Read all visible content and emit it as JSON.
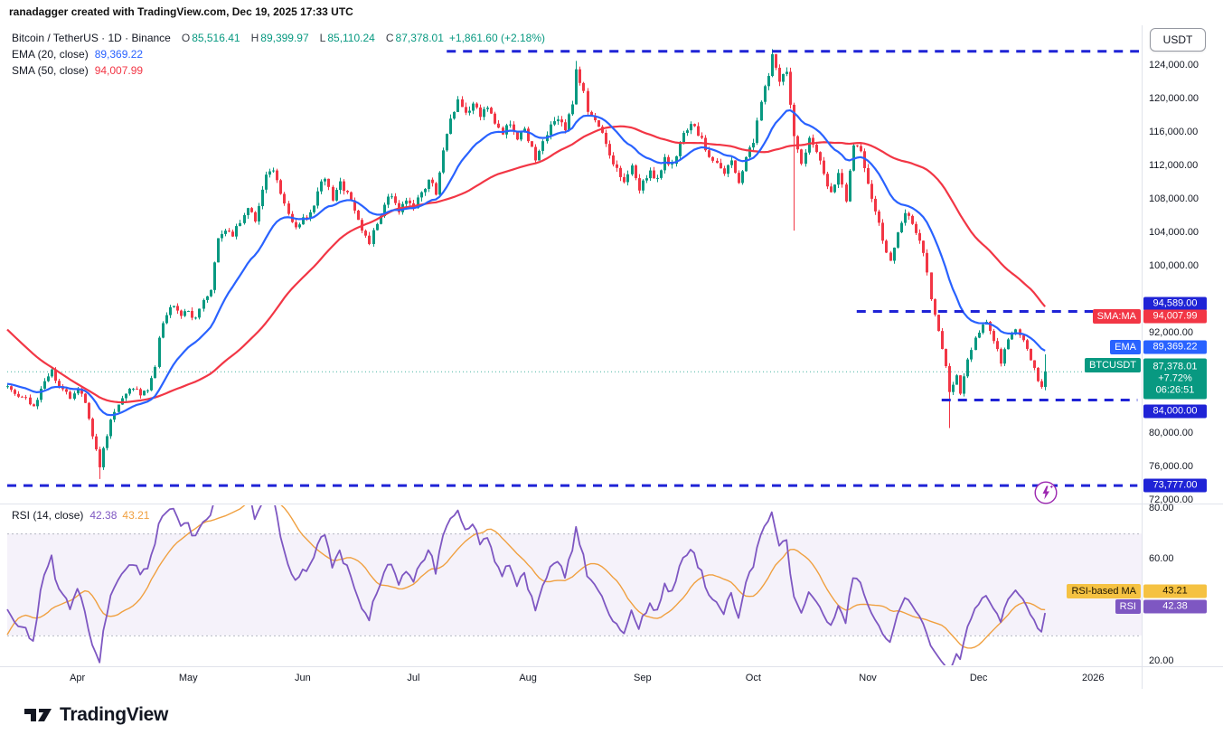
{
  "watermark": {
    "text": "ranadagger created with TradingView.com, Dec 19, 2025 17:33 UTC"
  },
  "header": {
    "symbol": "Bitcoin / TetherUS · 1D · Binance",
    "o_label": "O",
    "o": "85,516.41",
    "h_label": "H",
    "h": "89,399.97",
    "l_label": "L",
    "l": "85,110.24",
    "c_label": "C",
    "c": "87,378.01",
    "change": "+1,861.60 (+2.18%)"
  },
  "indicators": {
    "ema_label": "EMA (20, close)",
    "ema_value": "89,369.22",
    "sma_label": "SMA (50, close)",
    "sma_value": "94,007.99"
  },
  "rsi_legend": {
    "label": "RSI (14, close)",
    "value": "42.38",
    "ma_value": "43.21"
  },
  "axis": {
    "currency": "USDT"
  },
  "footer": {
    "brand": "TradingView"
  },
  "palette": {
    "up": "#089981",
    "down": "#f23645",
    "ema": "#2962ff",
    "sma": "#f23645",
    "rsi": "#7e57c2",
    "rsi_ma": "#f0a040",
    "level": "#1f23d6",
    "text": "#131722",
    "muted": "#787b86",
    "border": "#e0e3eb",
    "band": "rgba(126,87,194,0.08)"
  },
  "chart_data": {
    "type": "candlestick",
    "symbol": "BTCUSDT",
    "interval": "1D",
    "exchange": "Binance",
    "title": "Bitcoin / TetherUS · 1D · Binance",
    "ylim": [
      71600,
      128800
    ],
    "rsi_ylim": [
      15,
      85
    ],
    "last_candle": {
      "o": 85516.41,
      "h": 89399.97,
      "l": 85110.24,
      "c": 87378.01,
      "change": 1861.6,
      "change_pct": 2.18
    },
    "indicator_values": {
      "ema20": 89369.22,
      "sma50": 94007.99,
      "rsi14": 42.38,
      "rsi_ma14": 43.21
    },
    "levels": [
      {
        "price": 125700,
        "d1": 119,
        "d2": 307,
        "label": null
      },
      {
        "price": 94589,
        "d1": 230,
        "d2": 294,
        "label": "94,589.00"
      },
      {
        "price": 84000,
        "d1": 253,
        "d2": 306,
        "label": "84,000.00"
      },
      {
        "price": 73777,
        "d1": 0,
        "d2": 306,
        "label": "73,777.00"
      }
    ],
    "rsi_band": [
      70,
      30
    ],
    "price_axis": {
      "ticks": [
        {
          "v": 124000,
          "label": "124,000.00"
        },
        {
          "v": 120000,
          "label": "120,000.00"
        },
        {
          "v": 116000,
          "label": "116,000.00"
        },
        {
          "v": 112000,
          "label": "112,000.00"
        },
        {
          "v": 108000,
          "label": "108,000.00"
        },
        {
          "v": 104000,
          "label": "104,000.00"
        },
        {
          "v": 100000,
          "label": "100,000.00"
        },
        {
          "v": 92000,
          "label": "92,000.00"
        },
        {
          "v": 80000,
          "label": "80,000.00"
        },
        {
          "v": 76000,
          "label": "76,000.00"
        },
        {
          "v": 72000,
          "label": "72,000.00"
        }
      ],
      "badges": [
        {
          "price": 94589,
          "label": "94,589.00",
          "bg": "#1f23d6",
          "fg": "#ffffff",
          "nudge": -8
        },
        {
          "price": 94007.99,
          "label": "94,007.99",
          "bg": "#f23645",
          "fg": "#ffffff",
          "nudge": 1,
          "tag": "SMA:MA"
        },
        {
          "price": 89369.22,
          "label": "89,369.22",
          "bg": "#2962ff",
          "fg": "#ffffff",
          "nudge": -8,
          "tag": "EMA"
        },
        {
          "price": 84000,
          "label": "84,000.00",
          "bg": "#1f23d6",
          "fg": "#ffffff",
          "nudge": 13
        },
        {
          "price": 73777,
          "label": "73,777.00",
          "bg": "#1f23d6",
          "fg": "#ffffff",
          "nudge": 0
        }
      ],
      "price_box": {
        "price": 87378.01,
        "nudge": 8,
        "bg": "#089981",
        "fg": "#ffffff",
        "tag": "BTCUSDT",
        "lines": [
          "87,378.01",
          "+7.72%",
          "06:26:51"
        ]
      }
    },
    "rsi_axis": {
      "ticks": [
        {
          "v": 80,
          "label": "80.00"
        },
        {
          "v": 60,
          "label": "60.00"
        },
        {
          "v": 20,
          "label": "20.00"
        }
      ],
      "badges": [
        {
          "value": 43.21,
          "label": "43.21",
          "bg": "#f5c242",
          "fg": "#1e1502",
          "nudge": -12,
          "tag": "RSI-based MA"
        },
        {
          "value": 42.38,
          "label": "42.38",
          "bg": "#7e57c2",
          "fg": "#ffffff",
          "nudge": 3,
          "tag": "RSI"
        }
      ]
    },
    "time_axis": {
      "months": [
        {
          "label": "Apr",
          "day": 19
        },
        {
          "label": "May",
          "day": 49
        },
        {
          "label": "Jun",
          "day": 80
        },
        {
          "label": "Jul",
          "day": 110
        },
        {
          "label": "Aug",
          "day": 141
        },
        {
          "label": "Sep",
          "day": 172
        },
        {
          "label": "Oct",
          "day": 202
        },
        {
          "label": "Nov",
          "day": 233
        },
        {
          "label": "Dec",
          "day": 263
        },
        {
          "label": "2026",
          "day": 294
        }
      ]
    },
    "warmup_closes": [
      [
        -60,
        104000
      ],
      [
        -50,
        107000
      ],
      [
        -40,
        102000
      ],
      [
        -30,
        98000
      ],
      [
        -24,
        88000
      ],
      [
        -18,
        84000
      ],
      [
        -12,
        81000
      ],
      [
        -8,
        84800
      ],
      [
        -4,
        86000
      ]
    ],
    "close_waypoints": [
      [
        0,
        85600
      ],
      [
        4,
        84300
      ],
      [
        7,
        83200
      ],
      [
        10,
        86200
      ],
      [
        12,
        87600
      ],
      [
        14,
        85600
      ],
      [
        17,
        84100
      ],
      [
        19,
        85300
      ],
      [
        21,
        83600
      ],
      [
        23,
        79600
      ],
      [
        25,
        75900
      ],
      [
        26,
        78200
      ],
      [
        28,
        81600
      ],
      [
        30,
        83400
      ],
      [
        32,
        84700
      ],
      [
        34,
        85300
      ],
      [
        36,
        84500
      ],
      [
        38,
        85100
      ],
      [
        40,
        87900
      ],
      [
        41,
        91400
      ],
      [
        43,
        94100
      ],
      [
        45,
        95200
      ],
      [
        47,
        94000
      ],
      [
        49,
        94600
      ],
      [
        51,
        93800
      ],
      [
        53,
        95900
      ],
      [
        55,
        97100
      ],
      [
        57,
        103300
      ],
      [
        59,
        104200
      ],
      [
        61,
        103500
      ],
      [
        63,
        105100
      ],
      [
        65,
        106900
      ],
      [
        67,
        105300
      ],
      [
        69,
        109100
      ],
      [
        70,
        110900
      ],
      [
        72,
        111400
      ],
      [
        74,
        108600
      ],
      [
        76,
        106200
      ],
      [
        78,
        104600
      ],
      [
        80,
        105800
      ],
      [
        82,
        106400
      ],
      [
        84,
        108900
      ],
      [
        86,
        110400
      ],
      [
        88,
        107800
      ],
      [
        90,
        110100
      ],
      [
        92,
        108800
      ],
      [
        94,
        106600
      ],
      [
        96,
        104200
      ],
      [
        98,
        102600
      ],
      [
        100,
        105000
      ],
      [
        102,
        107300
      ],
      [
        104,
        108300
      ],
      [
        106,
        106400
      ],
      [
        108,
        107800
      ],
      [
        110,
        106900
      ],
      [
        112,
        108800
      ],
      [
        114,
        110300
      ],
      [
        116,
        108500
      ],
      [
        118,
        113800
      ],
      [
        120,
        117600
      ],
      [
        122,
        119900
      ],
      [
        124,
        118300
      ],
      [
        126,
        119400
      ],
      [
        128,
        117800
      ],
      [
        130,
        118900
      ],
      [
        132,
        117000
      ],
      [
        134,
        115700
      ],
      [
        136,
        116900
      ],
      [
        138,
        115100
      ],
      [
        140,
        116400
      ],
      [
        141,
        114900
      ],
      [
        143,
        112600
      ],
      [
        145,
        114900
      ],
      [
        147,
        116900
      ],
      [
        149,
        117500
      ],
      [
        151,
        116200
      ],
      [
        153,
        119300
      ],
      [
        154,
        123500
      ],
      [
        156,
        120900
      ],
      [
        157,
        118400
      ],
      [
        159,
        117400
      ],
      [
        161,
        115900
      ],
      [
        163,
        113200
      ],
      [
        165,
        111700
      ],
      [
        167,
        110000
      ],
      [
        169,
        112000
      ],
      [
        171,
        109000
      ],
      [
        172,
        110200
      ],
      [
        174,
        111400
      ],
      [
        176,
        110500
      ],
      [
        178,
        113000
      ],
      [
        180,
        112200
      ],
      [
        182,
        114800
      ],
      [
        184,
        116200
      ],
      [
        186,
        116700
      ],
      [
        188,
        115300
      ],
      [
        190,
        113000
      ],
      [
        192,
        112300
      ],
      [
        194,
        111000
      ],
      [
        196,
        112600
      ],
      [
        198,
        109900
      ],
      [
        200,
        113000
      ],
      [
        202,
        114700
      ],
      [
        204,
        119600
      ],
      [
        206,
        122700
      ],
      [
        207,
        125300
      ],
      [
        209,
        122000
      ],
      [
        211,
        123200
      ],
      [
        213,
        115500
      ],
      [
        215,
        112200
      ],
      [
        217,
        115300
      ],
      [
        219,
        113600
      ],
      [
        221,
        111000
      ],
      [
        223,
        108800
      ],
      [
        225,
        111100
      ],
      [
        227,
        107700
      ],
      [
        229,
        114400
      ],
      [
        231,
        113700
      ],
      [
        233,
        109800
      ],
      [
        235,
        106500
      ],
      [
        237,
        103000
      ],
      [
        239,
        100600
      ],
      [
        241,
        104000
      ],
      [
        243,
        106300
      ],
      [
        245,
        105000
      ],
      [
        247,
        103000
      ],
      [
        249,
        99200
      ],
      [
        250,
        96000
      ],
      [
        252,
        92200
      ],
      [
        254,
        88000
      ],
      [
        255,
        84900
      ],
      [
        257,
        86900
      ],
      [
        258,
        84700
      ],
      [
        260,
        88800
      ],
      [
        262,
        91400
      ],
      [
        263,
        92000
      ],
      [
        265,
        93300
      ],
      [
        267,
        91000
      ],
      [
        269,
        88300
      ],
      [
        271,
        91200
      ],
      [
        273,
        92400
      ],
      [
        275,
        91100
      ],
      [
        277,
        88700
      ],
      [
        279,
        86200
      ],
      [
        280,
        85516.41
      ],
      [
        281,
        87378.01
      ]
    ],
    "extremes": [
      {
        "day": 25,
        "low": 74500
      },
      {
        "day": 154,
        "high": 124500
      },
      {
        "day": 207,
        "high": 125900
      },
      {
        "day": 213,
        "low": 104200
      },
      {
        "day": 255,
        "low": 80600
      }
    ]
  }
}
